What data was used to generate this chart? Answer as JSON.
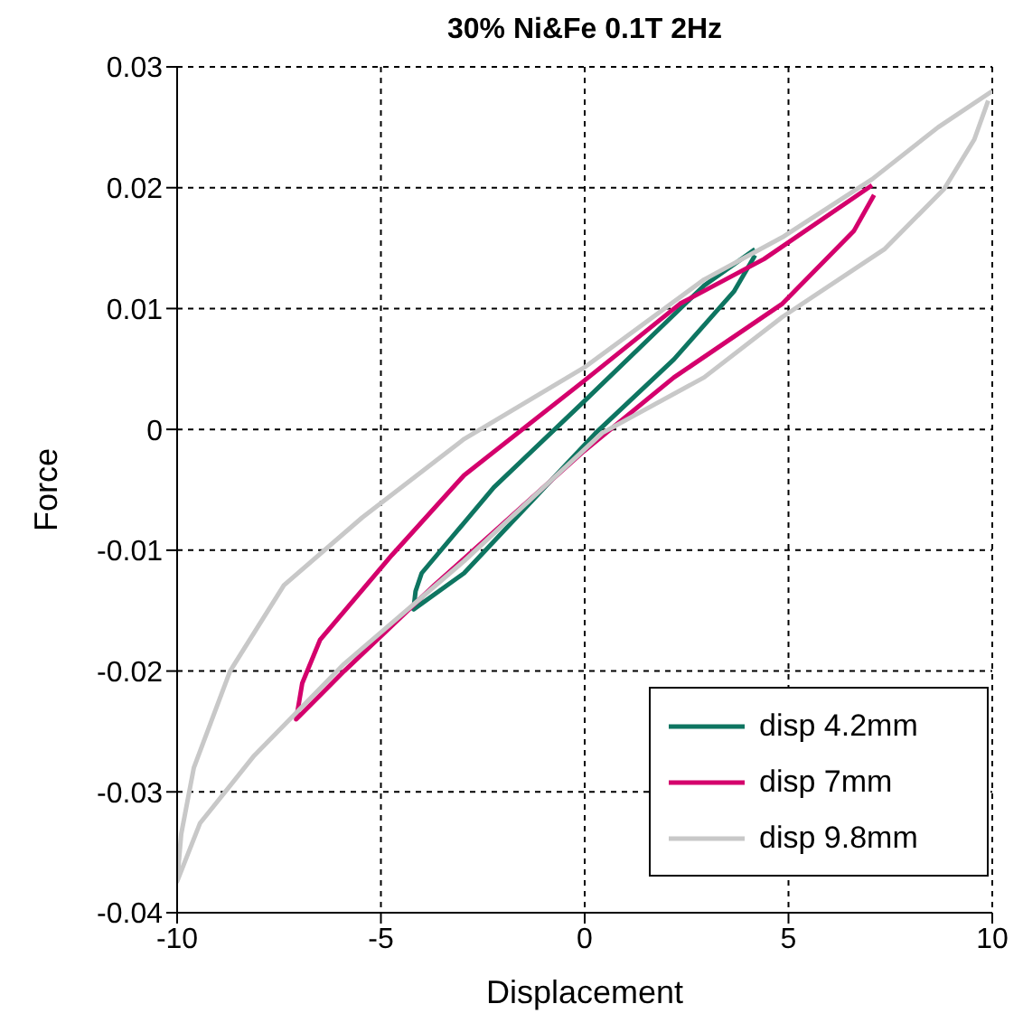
{
  "chart_data": {
    "type": "line",
    "title": "30% Ni&Fe  0.1T 2Hz",
    "xlabel": "Displacement",
    "ylabel": "Force",
    "xlim": [
      -10,
      10
    ],
    "xticks": [
      -10,
      -5,
      0,
      5,
      10
    ],
    "ylim": [
      -0.04,
      0.03
    ],
    "yticks": [
      -0.04,
      -0.03,
      -0.02,
      -0.01,
      0,
      0.01,
      0.02,
      0.03
    ],
    "grid": true,
    "legend": "bottom right",
    "marker": "none",
    "line_style": "solid",
    "series": [
      {
        "name": "disp 4.2mm",
        "color": "#0e7561",
        "x": [
          4.18,
          2.93,
          -0.02,
          -2.23,
          -4.0,
          -4.15,
          -4.2,
          -2.96,
          0.27,
          2.19,
          3.66,
          4.18
        ],
        "values": [
          0.0149,
          0.0119,
          0.0023,
          -0.0048,
          -0.0119,
          -0.0134,
          -0.0149,
          -0.0119,
          -0.0003,
          0.0058,
          0.0114,
          0.0144
        ]
      },
      {
        "name": "disp 7mm",
        "color": "#d4006c",
        "x": [
          7.05,
          4.4,
          2.34,
          -0.02,
          -2.96,
          -4.73,
          -6.49,
          -6.93,
          -7.08,
          -5.9,
          -3.69,
          -0.02,
          2.19,
          4.85,
          6.6,
          7.1
        ],
        "values": [
          0.0202,
          0.0141,
          0.0104,
          0.004,
          -0.0038,
          -0.0104,
          -0.0174,
          -0.021,
          -0.024,
          -0.02,
          -0.0129,
          -0.0018,
          0.0043,
          0.0104,
          0.0164,
          0.0194
        ]
      },
      {
        "name": "disp 9.8mm",
        "color": "#c8c8c8",
        "x": [
          10,
          8.67,
          7.05,
          4.85,
          2.93,
          -0.02,
          -2.96,
          -5.46,
          -7.38,
          -8.7,
          -9.59,
          -9.9,
          -10,
          -9.44,
          -8.11,
          -5.9,
          -2.96,
          0.43,
          2.93,
          4.85,
          7.35,
          8.82,
          9.56,
          9.9
        ],
        "values": [
          0.028,
          0.025,
          0.0207,
          0.0159,
          0.0124,
          0.0051,
          -0.0008,
          -0.0073,
          -0.0129,
          -0.02,
          -0.028,
          -0.0335,
          -0.0374,
          -0.0326,
          -0.027,
          -0.0194,
          -0.0109,
          -0.0003,
          0.0043,
          0.0093,
          0.0149,
          0.0199,
          0.024,
          0.0272
        ]
      }
    ]
  }
}
